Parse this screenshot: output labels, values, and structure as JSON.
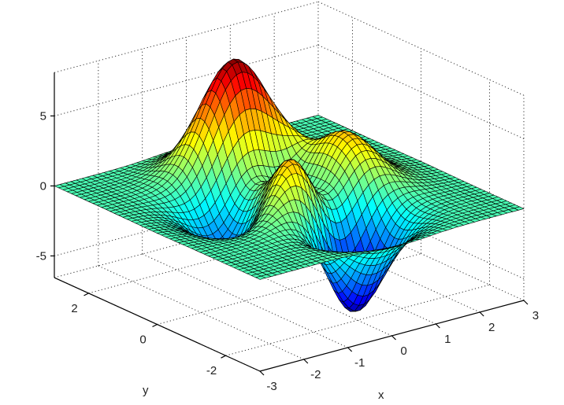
{
  "chart_data": {
    "type": "surface",
    "colormap": "jet",
    "edge_color": "#000000",
    "xlabel": "x",
    "ylabel": "y",
    "zlabel": "",
    "xlim": [
      -3,
      3
    ],
    "ylim": [
      -3,
      3
    ],
    "zlim": [
      -6.55,
      8.1
    ],
    "xticks": [
      -3,
      -2,
      -1,
      0,
      1,
      2,
      3
    ],
    "xtick_labels": [
      "-3",
      "-2",
      "-1",
      "0",
      "1",
      "2",
      "3"
    ],
    "yticks": [
      -2,
      0,
      2
    ],
    "ytick_labels": [
      "-2",
      "0",
      "2"
    ],
    "zticks": [
      -5,
      0,
      5
    ],
    "ztick_labels": [
      "-5",
      "0",
      "5"
    ],
    "grid": true
  }
}
